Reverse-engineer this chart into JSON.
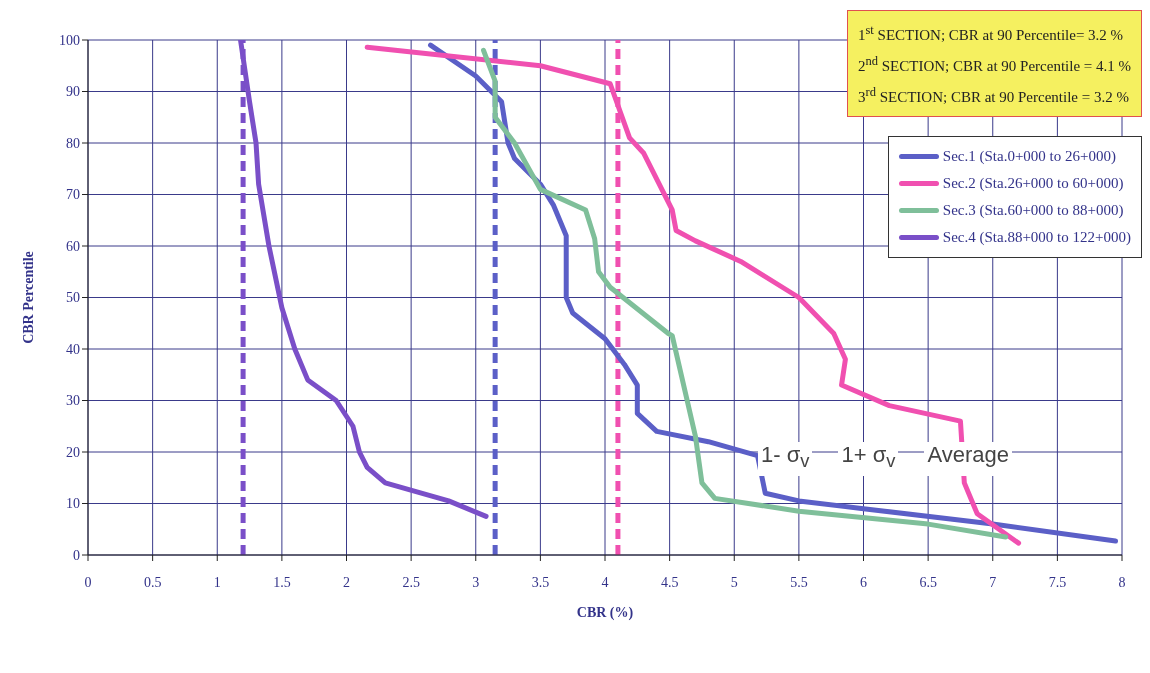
{
  "chart_data": {
    "type": "line",
    "xlabel": "CBR (%)",
    "ylabel": "CBR Percentile",
    "annotations": [
      "1$^{st}$ SECTION; CBR at 90 Percentile= 3.2 %",
      "2$^{nd}$ SECTION; CBR at 90 Percentile = 4.1 %",
      "3$^{rd}$ SECTION; CBR at 90 Percentile = 3.2 %",
      "1- σ$_{v}$",
      "1+ σ$_{v}$",
      "Average"
    ],
    "xlim": [
      0,
      8
    ],
    "xticks": [
      0,
      0.5,
      1,
      1.5,
      2,
      2.5,
      3,
      3.5,
      4,
      4.5,
      5,
      5.5,
      6,
      6.5,
      7,
      7.5,
      8
    ],
    "ylim": [
      0,
      100
    ],
    "yticks": [
      0,
      10,
      20,
      30,
      40,
      50,
      60,
      70,
      80,
      90,
      100
    ],
    "grid": true,
    "legend": "top right",
    "marker": "none",
    "line_style": "solid",
    "ref_lines": [
      {
        "axis": "x",
        "value": 1.2,
        "color": "#7a4fc8",
        "line_style": "dashed"
      },
      {
        "axis": "x",
        "value": 3.15,
        "color": "#5b5fc7",
        "line_style": "dashed"
      },
      {
        "axis": "x",
        "value": 4.1,
        "color": "#f050b0",
        "line_style": "dashed"
      }
    ],
    "series": [
      {
        "name": "Sec.1 (Sta.0+000 to 26+000)",
        "color": "#5b5fc7",
        "x": [
          2.65,
          3.0,
          3.2,
          3.25,
          3.3,
          3.5,
          3.6,
          3.7,
          3.7,
          3.75,
          4.0,
          4.15,
          4.25,
          4.25,
          4.4,
          4.8,
          5.18,
          5.24,
          5.5,
          6.0,
          7.0,
          7.95
        ],
        "values": [
          99,
          93,
          88,
          80,
          77,
          72,
          68,
          62,
          50,
          47,
          42,
          37,
          33,
          27.5,
          24,
          22,
          19.3,
          12,
          10.5,
          9,
          6,
          2.7
        ]
      },
      {
        "name": "Sec.2 (Sta.26+000 to 60+000)",
        "color": "#f050b0",
        "x": [
          2.16,
          3.5,
          4.04,
          4.19,
          4.3,
          4.52,
          4.55,
          4.7,
          5.05,
          5.5,
          5.77,
          5.86,
          5.83,
          6.2,
          6.75,
          6.78,
          6.88,
          7.2
        ],
        "values": [
          98.6,
          95,
          91.5,
          81,
          78,
          67,
          63,
          61,
          57,
          50,
          43,
          38,
          33,
          29,
          26,
          14,
          8,
          2.3
        ]
      },
      {
        "name": "Sec.3 (Sta.60+000 to 88+000)",
        "color": "#7fbf9a",
        "x": [
          3.06,
          3.15,
          3.15,
          3.3,
          3.5,
          3.85,
          3.92,
          3.95,
          4.04,
          4.49,
          4.52,
          4.7,
          4.75,
          4.85,
          5.5,
          6.5,
          7.1
        ],
        "values": [
          98,
          92,
          85,
          80,
          71,
          67,
          61.4,
          55,
          52,
          43,
          42.6,
          23,
          14,
          11,
          8.5,
          6,
          3.5
        ]
      },
      {
        "name": "Sec.4 (Sta.88+000 to 122+000)",
        "color": "#7a4fc8",
        "x": [
          1.18,
          1.25,
          1.3,
          1.32,
          1.4,
          1.5,
          1.6,
          1.7,
          1.92,
          2.05,
          2.1,
          2.16,
          2.3,
          2.79,
          3.08
        ],
        "values": [
          100,
          88,
          80,
          72,
          60,
          48,
          40,
          34,
          30,
          25,
          20,
          17,
          14,
          10.5,
          7.5
        ]
      }
    ]
  }
}
